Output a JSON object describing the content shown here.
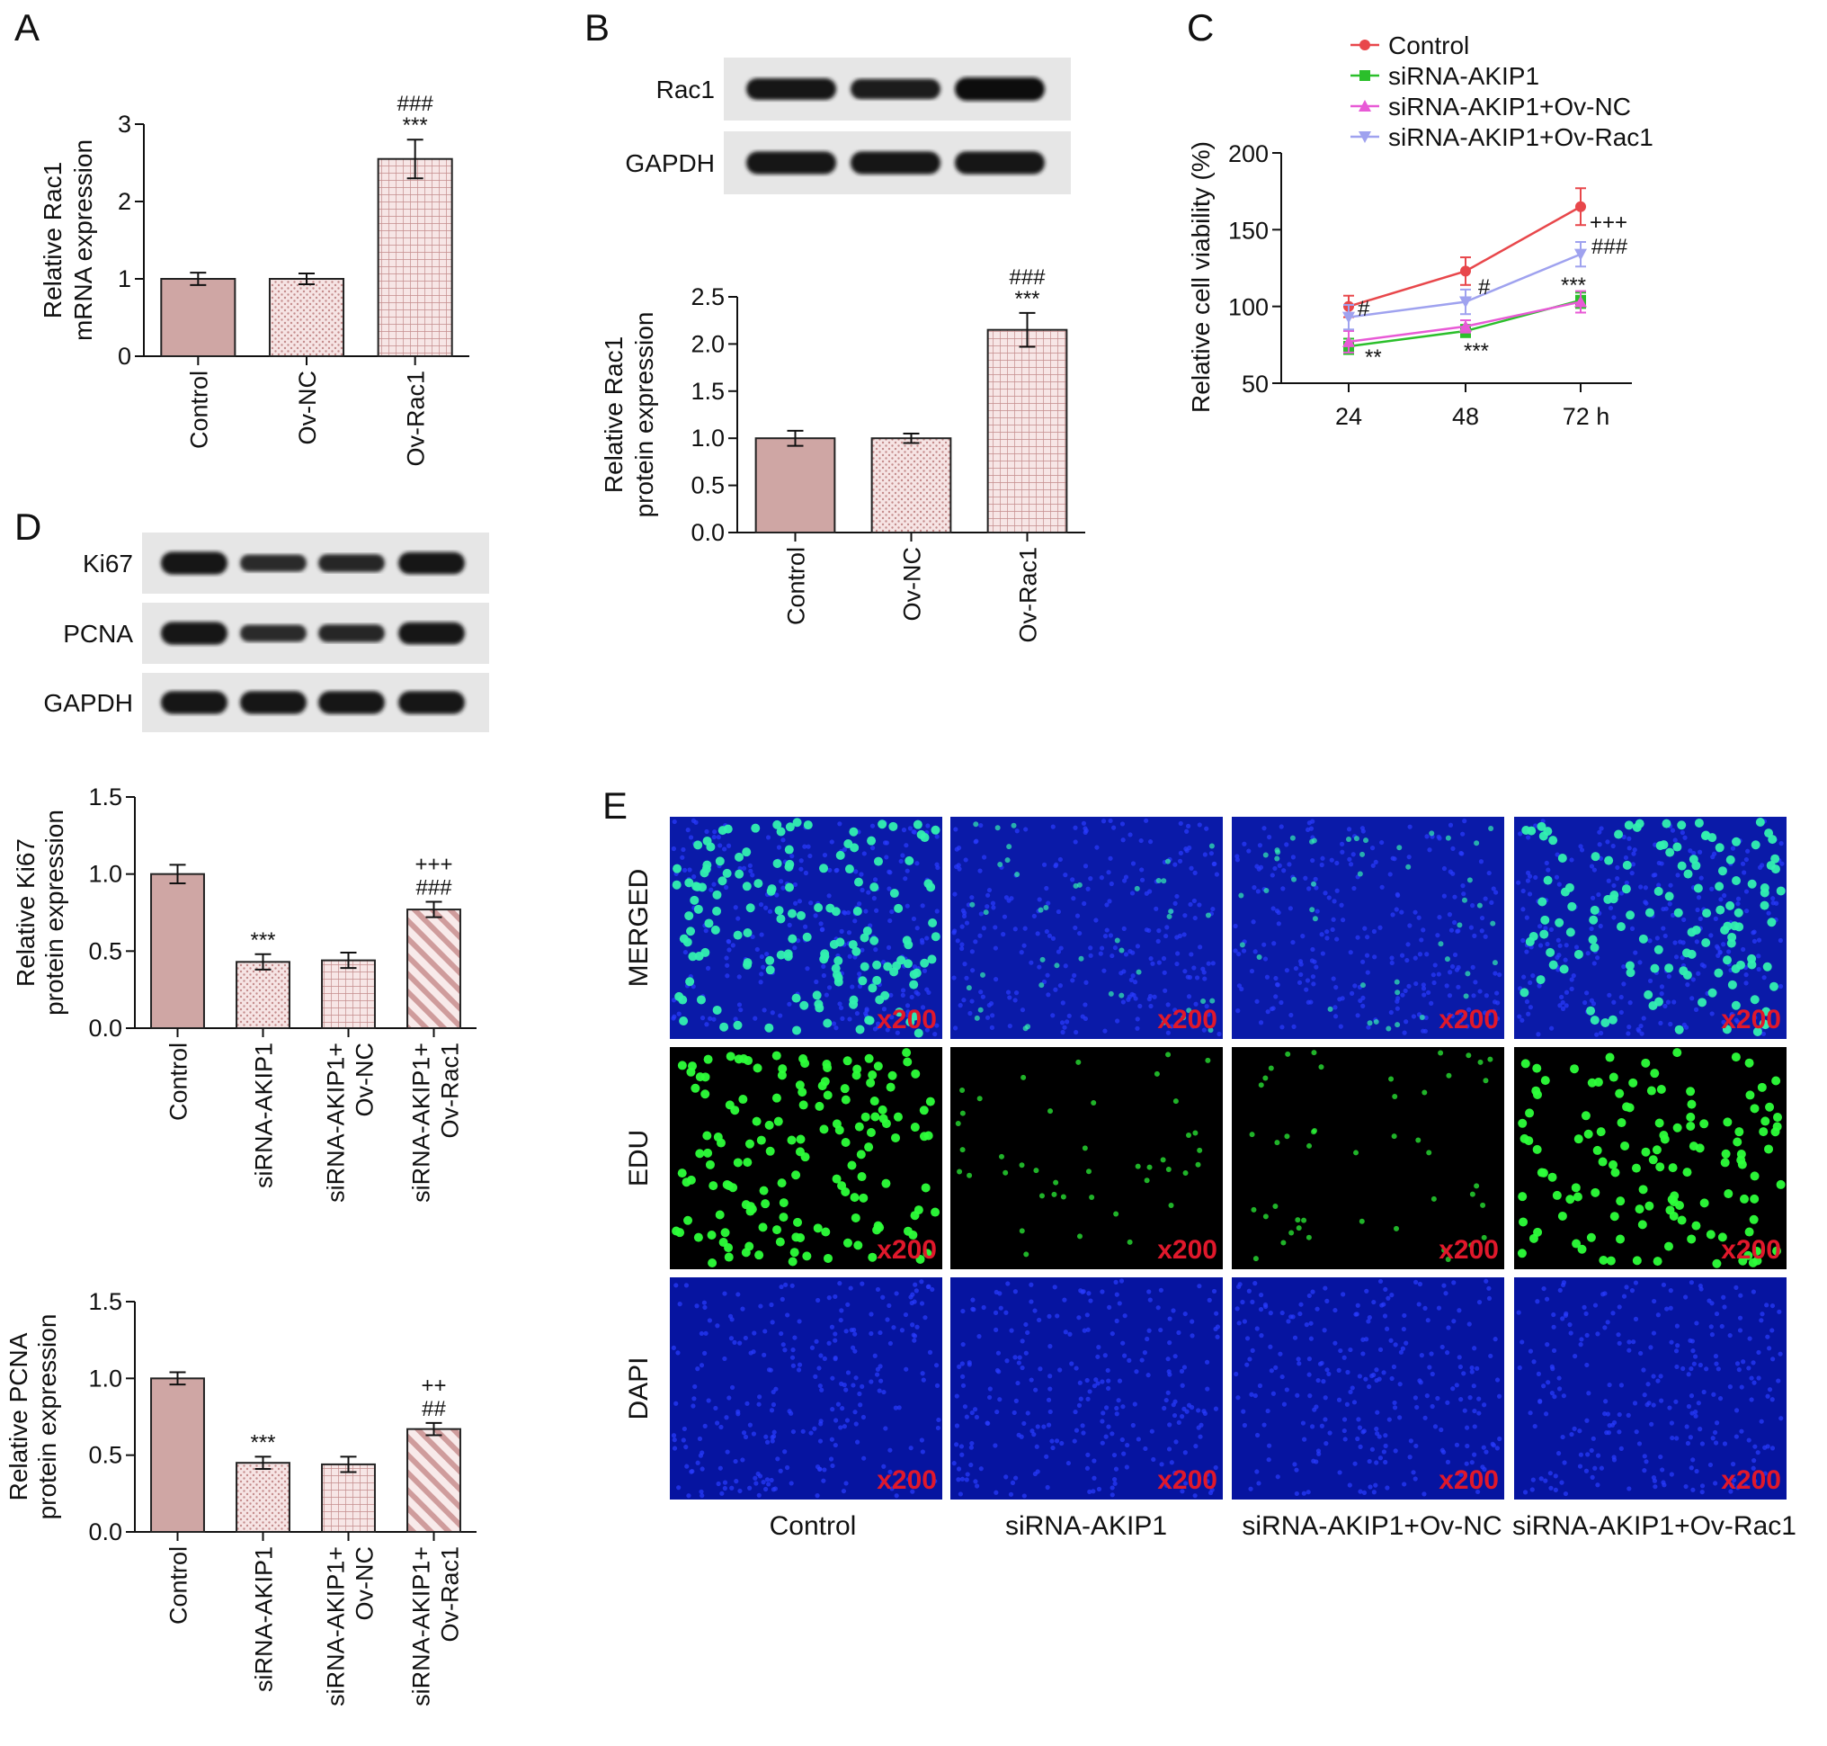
{
  "panels": {
    "A": "A",
    "B": "B",
    "C": "C",
    "D": "D",
    "E": "E"
  },
  "colors": {
    "bar_fill": "#cfa6a4",
    "bar_hatch": "#f3d8d8",
    "bar_stroke": "#222222",
    "control": "#e8474b",
    "sirna": "#2bbf2b",
    "ov_nc": "#e85ad6",
    "ov_rac1": "#9fa2ef",
    "merged_bg": "#0a1aa8",
    "edu_cell": "#2dff3a",
    "dapi_bg": "#0614a0",
    "mag": "#e0182b"
  },
  "chart_data": [
    {
      "id": "A",
      "type": "bar",
      "title": "",
      "ylabel": [
        "Relative Rac1",
        "mRNA expression"
      ],
      "xlabel": "",
      "categories": [
        "Control",
        "Ov-NC",
        "Ov-Rac1"
      ],
      "values": [
        1.0,
        1.0,
        2.55
      ],
      "errors": [
        0.08,
        0.07,
        0.25
      ],
      "ylim": [
        0,
        3
      ],
      "yticks": [
        "0",
        "1",
        "2",
        "3"
      ],
      "annotations": [
        [
          "",
          "",
          "###",
          "***"
        ]
      ],
      "patterns": [
        "solid",
        "dots",
        "grid"
      ]
    },
    {
      "id": "B",
      "type": "bar",
      "title": "",
      "ylabel": [
        "Relative Rac1",
        "protein expression"
      ],
      "xlabel": "",
      "categories": [
        "Control",
        "Ov-NC",
        "Ov-Rac1"
      ],
      "values": [
        1.0,
        1.0,
        2.15
      ],
      "errors": [
        0.08,
        0.05,
        0.18
      ],
      "ylim": [
        0,
        2.5
      ],
      "yticks": [
        "0.0",
        "0.5",
        "1.0",
        "1.5",
        "2.0",
        "2.5"
      ],
      "annotations": [
        [
          "",
          "",
          "###",
          "***"
        ]
      ],
      "patterns": [
        "solid",
        "dots",
        "grid"
      ]
    },
    {
      "id": "C",
      "type": "line",
      "title": "",
      "ylabel": "Relative cell viability (%)",
      "xlabel": "",
      "x": [
        "24",
        "48",
        "72 h"
      ],
      "ylim": [
        50,
        200
      ],
      "yticks": [
        "50",
        "100",
        "150",
        "200"
      ],
      "series": [
        {
          "name": "Control",
          "values": [
            100,
            123,
            165
          ],
          "errors": [
            7,
            9,
            12
          ]
        },
        {
          "name": "siRNA-AKIP1",
          "values": [
            74,
            84,
            104
          ],
          "errors": [
            5,
            4,
            5
          ]
        },
        {
          "name": "siRNA-AKIP1+Ov-NC",
          "values": [
            77,
            87,
            103
          ],
          "errors": [
            7,
            4,
            7
          ]
        },
        {
          "name": "siRNA-AKIP1+Ov-Rac1",
          "values": [
            93,
            103,
            134
          ],
          "errors": [
            8,
            8,
            8
          ]
        }
      ],
      "annotations": [
        "#",
        "**",
        "#",
        "***",
        "+++",
        "###",
        "***"
      ]
    },
    {
      "id": "D1",
      "type": "bar",
      "title": "",
      "ylabel": [
        "Relative Ki67",
        "protein expression"
      ],
      "xlabel": "",
      "categories": [
        [
          "Control"
        ],
        [
          "siRNA-AKIP1"
        ],
        [
          "siRNA-AKIP1+",
          "Ov-NC"
        ],
        [
          "siRNA-AKIP1+",
          "Ov-Rac1"
        ]
      ],
      "values": [
        1.0,
        0.43,
        0.44,
        0.77
      ],
      "errors": [
        0.06,
        0.05,
        0.05,
        0.05
      ],
      "ylim": [
        0,
        1.5
      ],
      "yticks": [
        "0.0",
        "0.5",
        "1.0",
        "1.5"
      ],
      "annotations": [
        [
          ""
        ],
        [
          "***"
        ],
        [
          ""
        ],
        [
          "+++",
          "###"
        ]
      ],
      "patterns": [
        "solid",
        "dots",
        "grid",
        "stripes"
      ]
    },
    {
      "id": "D2",
      "type": "bar",
      "title": "",
      "ylabel": [
        "Relative PCNA",
        "protein expression"
      ],
      "xlabel": "",
      "categories": [
        [
          "Control"
        ],
        [
          "siRNA-AKIP1"
        ],
        [
          "siRNA-AKIP1+",
          "Ov-NC"
        ],
        [
          "siRNA-AKIP1+",
          "Ov-Rac1"
        ]
      ],
      "values": [
        1.0,
        0.45,
        0.44,
        0.67
      ],
      "errors": [
        0.04,
        0.04,
        0.05,
        0.04
      ],
      "ylim": [
        0,
        1.5
      ],
      "yticks": [
        "0.0",
        "0.5",
        "1.0",
        "1.5"
      ],
      "annotations": [
        [
          ""
        ],
        [
          "***"
        ],
        [
          ""
        ],
        [
          "++",
          "##"
        ]
      ],
      "patterns": [
        "solid",
        "dots",
        "grid",
        "stripes"
      ]
    }
  ],
  "blots": {
    "B": [
      {
        "label": "Rac1",
        "intensity": [
          0.85,
          0.75,
          1.0
        ]
      },
      {
        "label": "GAPDH",
        "intensity": [
          0.95,
          0.95,
          0.95
        ]
      }
    ],
    "D": [
      {
        "label": "Ki67",
        "intensity": [
          0.95,
          0.5,
          0.55,
          0.9
        ]
      },
      {
        "label": "PCNA",
        "intensity": [
          0.95,
          0.5,
          0.55,
          0.9
        ]
      },
      {
        "label": "GAPDH",
        "intensity": [
          0.95,
          0.95,
          0.95,
          0.95
        ]
      }
    ]
  },
  "images_E": {
    "rows": [
      "MERGED",
      "EDU",
      "DAPI"
    ],
    "columns": [
      "Control",
      "siRNA-AKIP1",
      "siRNA-AKIP1+Ov-NC",
      "siRNA-AKIP1+Ov-Rac1"
    ],
    "magnification": "x200",
    "edu_density": [
      1.0,
      0.28,
      0.3,
      0.85
    ]
  }
}
